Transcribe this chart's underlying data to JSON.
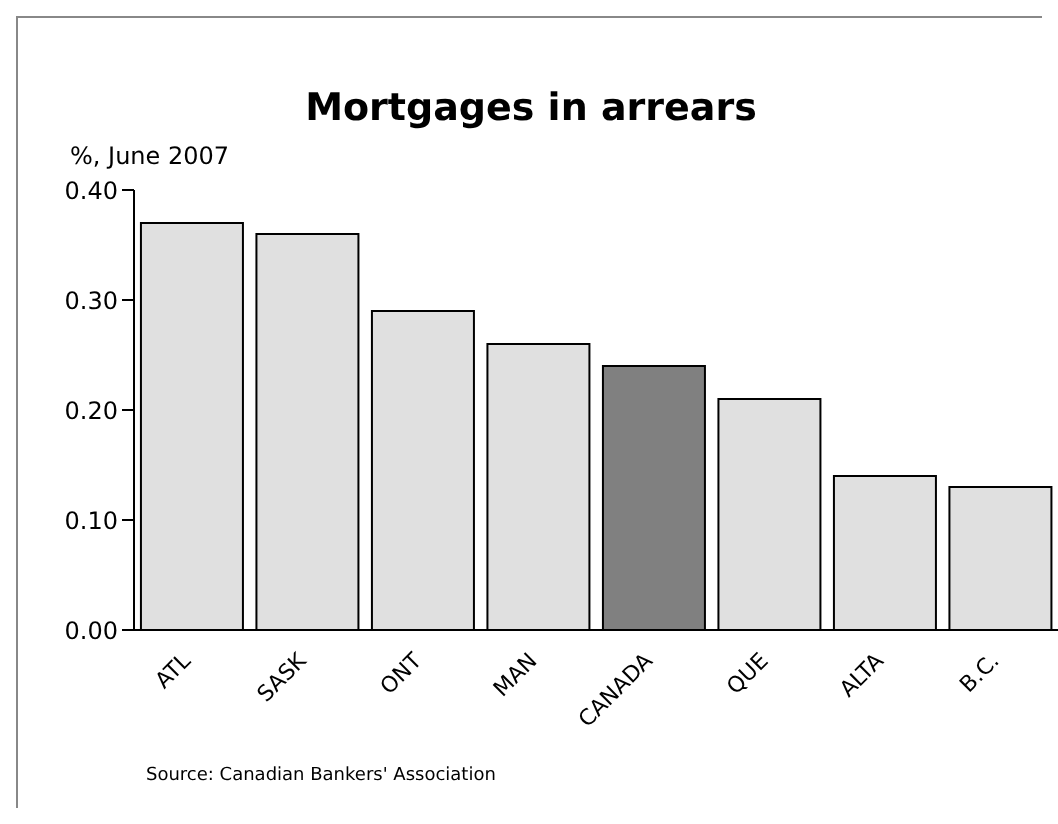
{
  "chart_data": {
    "type": "bar",
    "title": "Mortgages in arrears",
    "ylabel": "%, June 2007",
    "categories": [
      "ATL",
      "SASK",
      "ONT",
      "MAN",
      "CANADA",
      "QUE",
      "ALTA",
      "B.C."
    ],
    "values": [
      0.37,
      0.36,
      0.29,
      0.26,
      0.24,
      0.21,
      0.14,
      0.13
    ],
    "colors": [
      "#e0e0e0",
      "#e0e0e0",
      "#e0e0e0",
      "#e0e0e0",
      "#808080",
      "#e0e0e0",
      "#e0e0e0",
      "#e0e0e0"
    ],
    "ylim": [
      0,
      0.4
    ],
    "yticks": [
      {
        "value": 0,
        "label": "0.00"
      },
      {
        "value": 0.1,
        "label": "0.10"
      },
      {
        "value": 0.2,
        "label": "0.20"
      },
      {
        "value": 0.3,
        "label": "0.30"
      },
      {
        "value": 0.4,
        "label": "0.40"
      }
    ],
    "annotations": [
      "Source:  Canadian Bankers' Association"
    ]
  }
}
